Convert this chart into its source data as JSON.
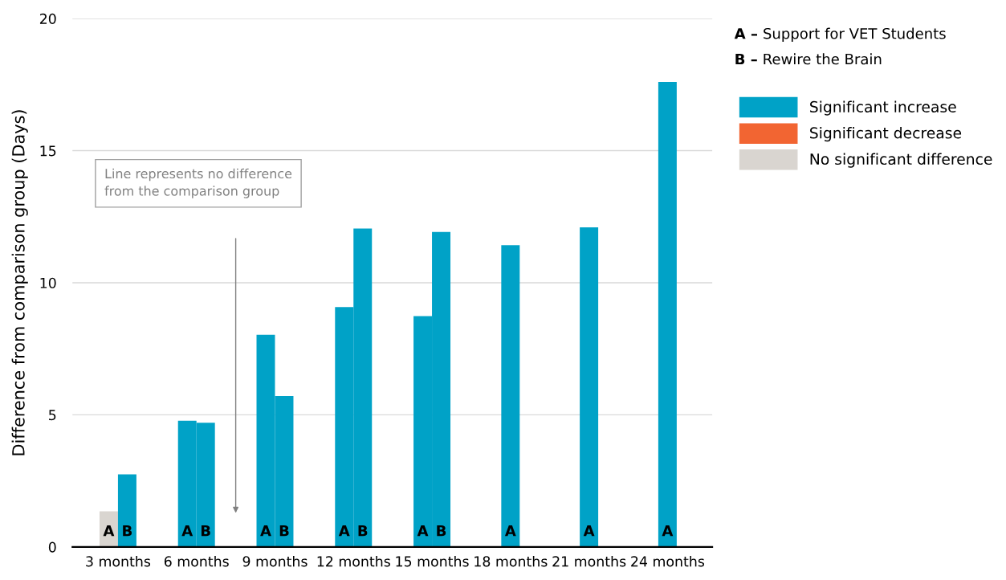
{
  "chart_data": {
    "type": "bar",
    "ylabel": "Difference from comparison group (Days)",
    "categories": [
      "3 months",
      "6 months",
      "9 months",
      "12 months",
      "15 months",
      "18 months",
      "21 months",
      "24 months"
    ],
    "series": [
      {
        "name": "A",
        "values": [
          1.35,
          4.78,
          8.03,
          9.08,
          8.74,
          11.42,
          12.1,
          17.6
        ],
        "colors": [
          "#d9d5d0",
          "#00a2c7",
          "#00a2c7",
          "#00a2c7",
          "#00a2c7",
          "#00a2c7",
          "#00a2c7",
          "#00a2c7"
        ]
      },
      {
        "name": "B",
        "values": [
          2.75,
          4.7,
          5.71,
          12.05,
          11.92,
          null,
          null,
          null
        ],
        "colors": [
          "#00a2c7",
          "#00a2c7",
          "#00a2c7",
          "#00a2c7",
          "#00a2c7",
          null,
          null,
          null
        ]
      },
      {
        "name": "Significant increase",
        "color": "#00a2c7",
        "values": [
          null,
          null,
          null,
          null,
          null,
          null,
          null,
          null
        ]
      },
      {
        "name": "Significant decrease",
        "color": "#f26532",
        "values": [
          null,
          null,
          null,
          null,
          null,
          null,
          null,
          null
        ]
      },
      {
        "name": "No significant difference",
        "color": "#d9d5d0",
        "values": [
          null,
          null,
          null,
          null,
          null,
          null,
          null,
          null
        ]
      }
    ],
    "ylim": [
      0,
      20
    ],
    "yticks": [
      0,
      5,
      10,
      15,
      20
    ],
    "grid": "y",
    "legend": "top right",
    "annotations": [
      "A – Support for VET Students",
      "B – Rewire the Brain",
      "Line represents no difference\nfrom the comparison group"
    ]
  }
}
